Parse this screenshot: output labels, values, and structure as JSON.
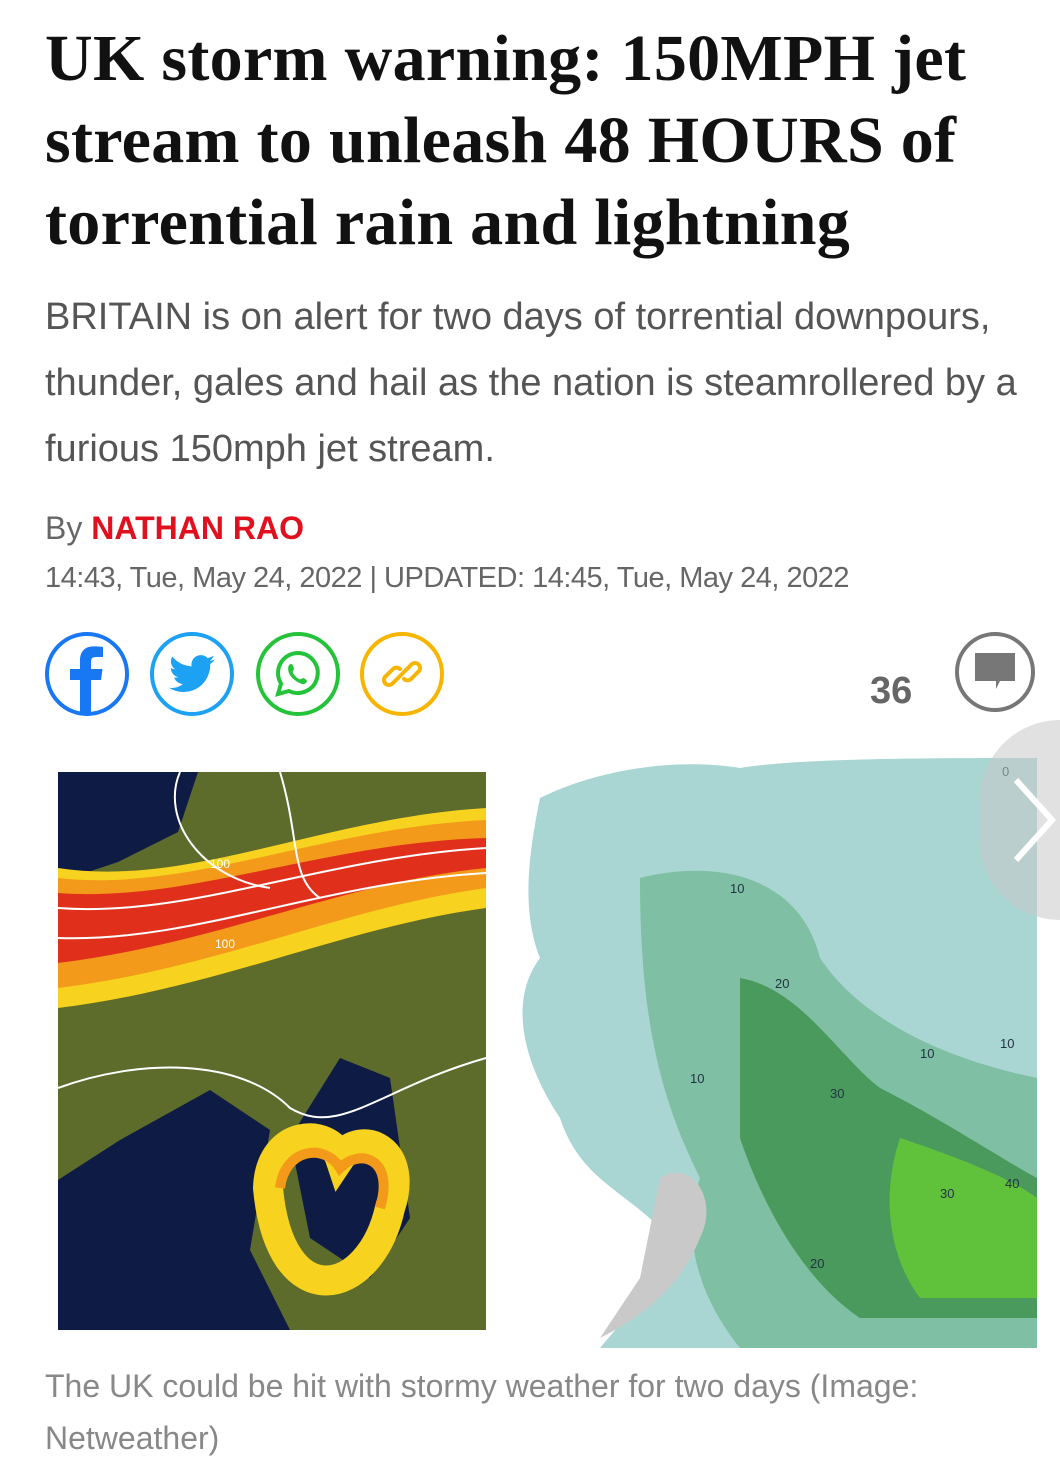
{
  "article": {
    "headline": "UK storm warning: 150MPH jet stream to unleash 48 HOURS of torrential rain and lightning",
    "standfirst": "BRITAIN is on alert for two days of torrential downpours, thunder, gales and hail as the nation is steamrollered by a furious 150mph jet stream.",
    "byline_prefix": "By",
    "author": "NATHAN RAO",
    "timestamp": "14:43, Tue, May 24, 2022 | UPDATED: 14:45, Tue, May 24, 2022"
  },
  "share": {
    "items": [
      {
        "icon": "facebook-icon",
        "color": "#1877f2"
      },
      {
        "icon": "twitter-icon",
        "color": "#1da1f2"
      },
      {
        "icon": "whatsapp-icon",
        "color": "#25c33a"
      },
      {
        "icon": "link-icon",
        "color": "#f7b500"
      }
    ],
    "comment_count": "36"
  },
  "media": {
    "caption": "The UK could be hit with stormy weather for two days (Image: Netweather)",
    "map_labels": {
      "left": [
        "100",
        "100"
      ],
      "right": [
        "10",
        "20",
        "30",
        "10",
        "10",
        "20",
        "30",
        "40",
        "10",
        "0"
      ]
    }
  },
  "colors": {
    "accent": "#e0101e",
    "text": "#111111",
    "muted": "#666666"
  }
}
